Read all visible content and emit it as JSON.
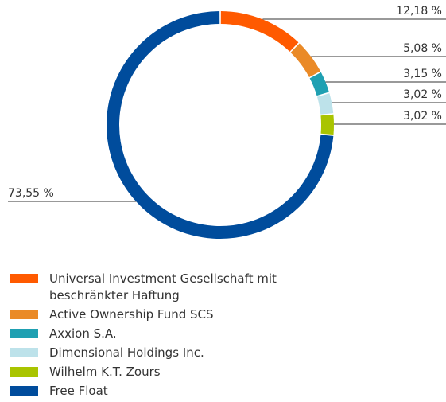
{
  "chart_data": {
    "type": "pie",
    "categories": [
      "Universal Investment Gesellschaft mit beschränkter Haftung",
      "Active Ownership Fund SCS",
      "Axxion S.A.",
      "Dimensional Holdings Inc.",
      "Wilhelm K.T. Zours",
      "Free Float"
    ],
    "values": [
      12.18,
      5.08,
      3.15,
      3.02,
      3.02,
      73.55
    ],
    "value_labels": [
      "12,18 %",
      "5,08 %",
      "3,15 %",
      "3,02 %",
      "3,02 %",
      "73,55 %"
    ],
    "colors": [
      "#ff5a00",
      "#ea8a27",
      "#1fa0b2",
      "#bde2ea",
      "#a9c400",
      "#004c9c"
    ],
    "legend": "bottom-left"
  }
}
